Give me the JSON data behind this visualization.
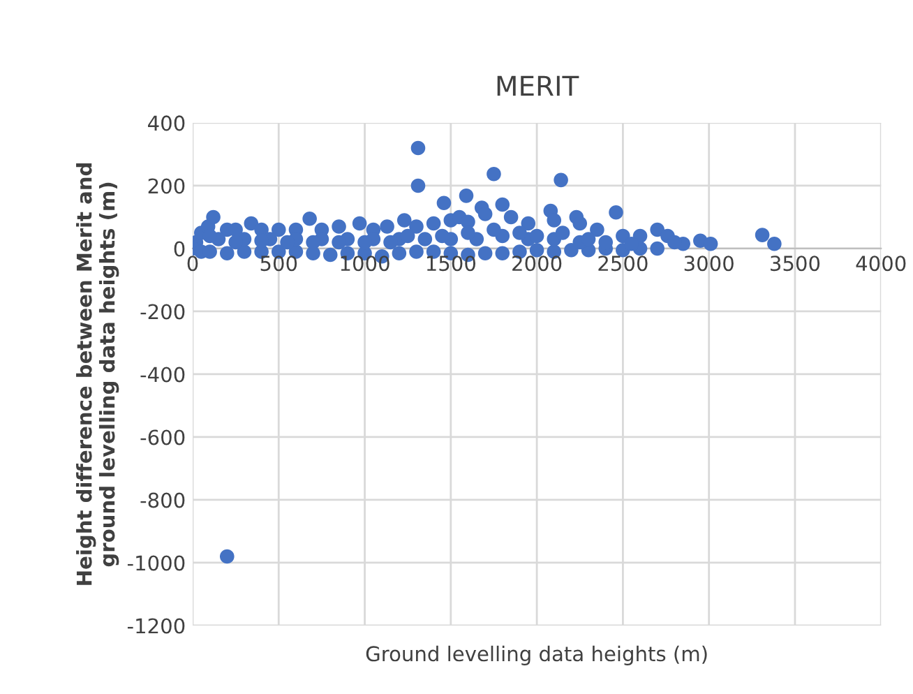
{
  "chart_data": {
    "type": "scatter",
    "title": "MERIT",
    "xlabel": "Ground levelling data heights (m)",
    "ylabel": "Height difference between Merit and\nground levelling data heights (m)",
    "xlim": [
      0,
      4000
    ],
    "xticks": [
      0,
      500,
      1000,
      1500,
      2000,
      2500,
      3000,
      3500,
      4000
    ],
    "ylim": [
      -1200,
      400
    ],
    "yticks": [
      -1200,
      -1000,
      -800,
      -600,
      -400,
      -200,
      0,
      200,
      400
    ],
    "grid": true,
    "marker": "circle",
    "legend": false,
    "series": [
      {
        "color": "#4472c4",
        "x": [
          1310,
          1310,
          1750,
          2140,
          1590,
          1460,
          1680,
          1800,
          2080,
          2460,
          2230,
          3310,
          3380,
          2950,
          3010,
          2850,
          200,
          20,
          50,
          90,
          120,
          200,
          250,
          340,
          400,
          500,
          600,
          680,
          750,
          850,
          970,
          1050,
          1130,
          1230,
          1300,
          1400,
          1500,
          1550,
          1600,
          1700,
          1850,
          1950,
          2100,
          2250,
          2350,
          2500,
          2600,
          2700,
          2760,
          2800,
          0,
          50,
          100,
          200,
          300,
          400,
          500,
          600,
          700,
          800,
          900,
          1000,
          1100,
          1200,
          1300,
          1400,
          1500,
          1600,
          1700,
          1800,
          1900,
          2000,
          2100,
          2200,
          2300,
          2400,
          2500,
          2600,
          2700,
          150,
          300,
          450,
          600,
          750,
          900,
          1050,
          1200,
          1350,
          1500,
          1650,
          1800,
          1950,
          2100,
          2250,
          2400,
          2550,
          100,
          250,
          400,
          550,
          700,
          850,
          1000,
          1150,
          1250,
          1450,
          1600,
          1750,
          1900,
          2000,
          2150,
          2300
        ],
        "values": [
          320,
          200,
          237,
          218,
          168,
          145,
          130,
          140,
          120,
          115,
          100,
          43,
          15,
          25,
          15,
          15,
          -980,
          20,
          50,
          70,
          100,
          60,
          60,
          80,
          60,
          60,
          60,
          95,
          60,
          70,
          80,
          60,
          70,
          90,
          70,
          80,
          90,
          100,
          85,
          110,
          100,
          80,
          90,
          80,
          60,
          40,
          40,
          60,
          40,
          20,
          0,
          -10,
          -10,
          -15,
          -10,
          -10,
          -10,
          -10,
          -15,
          -20,
          -15,
          -15,
          -25,
          -15,
          -10,
          -10,
          -15,
          -20,
          -15,
          -15,
          -10,
          -5,
          -10,
          -5,
          -5,
          0,
          -5,
          0,
          0,
          30,
          30,
          30,
          30,
          30,
          30,
          30,
          30,
          30,
          30,
          30,
          40,
          30,
          30,
          20,
          20,
          15,
          40,
          20,
          25,
          20,
          20,
          20,
          20,
          20,
          40,
          40,
          50,
          60,
          50,
          40,
          50,
          30
        ]
      }
    ]
  }
}
